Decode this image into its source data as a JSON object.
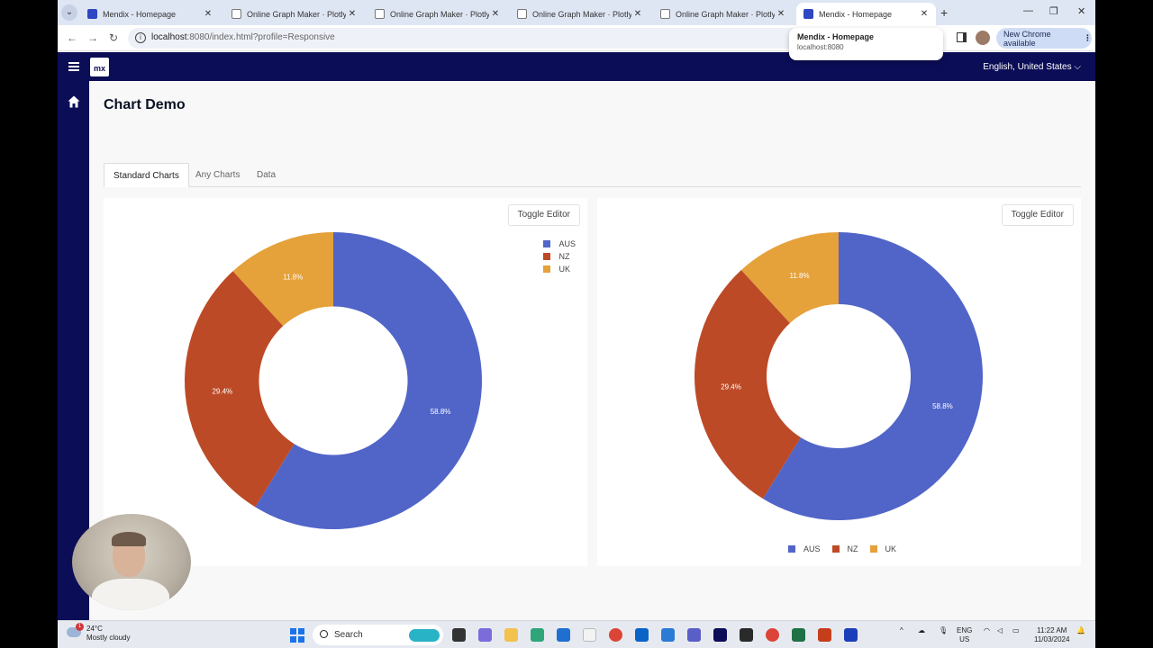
{
  "browser": {
    "tabs": [
      {
        "title": "Mendix - Homepage",
        "favicon": "mendix-icon",
        "active": false
      },
      {
        "title": "Online Graph Maker · Plotly Ch",
        "favicon": "plotly-icon",
        "active": false
      },
      {
        "title": "Online Graph Maker · Plotly Ch",
        "favicon": "plotly-icon",
        "active": false
      },
      {
        "title": "Online Graph Maker · Plotly Ch",
        "favicon": "plotly-icon",
        "active": false
      },
      {
        "title": "Online Graph Maker · Plotly Ch",
        "favicon": "plotly-icon",
        "active": false
      },
      {
        "title": "Mendix - Homepage",
        "favicon": "mendix-icon",
        "active": true
      }
    ],
    "url_host": "localhost",
    "url_rest": ":8080/index.html?profile=Responsive",
    "update_label": "New Chrome available",
    "hovercard": {
      "title": "Mendix - Homepage",
      "host": "localhost:8080"
    }
  },
  "app": {
    "logo_text": "mx",
    "language": "English, United States",
    "page_title": "Chart Demo",
    "tabs": [
      "Standard Charts",
      "Any Charts",
      "Data"
    ],
    "active_tab": "Standard Charts",
    "toggle_editor_label": "Toggle Editor"
  },
  "chart_data": [
    {
      "type": "pie",
      "hole": true,
      "categories": [
        "AUS",
        "NZ",
        "UK"
      ],
      "values": [
        58.8,
        29.4,
        11.8
      ],
      "value_labels": [
        "58.8%",
        "29.4%",
        "11.8%"
      ],
      "colors": [
        "#5165c8",
        "#bd4a26",
        "#e5a13a"
      ],
      "legend_placement": "top-right"
    },
    {
      "type": "pie",
      "hole": true,
      "categories": [
        "AUS",
        "NZ",
        "UK"
      ],
      "values": [
        58.8,
        29.4,
        11.8
      ],
      "value_labels": [
        "58.8%",
        "29.4%",
        "11.8%"
      ],
      "colors": [
        "#5165c8",
        "#bd4a26",
        "#e5a13a"
      ],
      "legend_placement": "bottom"
    }
  ],
  "taskbar": {
    "weather_temp": "24°C",
    "weather_desc": "Mostly cloudy",
    "weather_badge": "1",
    "search_label": "Search",
    "lang_top": "ENG",
    "lang_bottom": "US",
    "time": "11:22 AM",
    "date": "11/03/2024"
  }
}
